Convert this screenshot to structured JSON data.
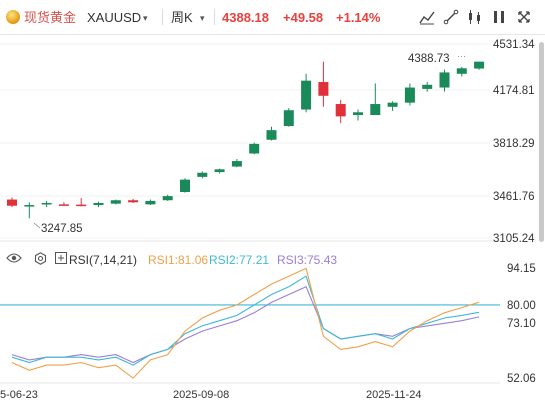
{
  "header": {
    "symbol_cn": "现货黄金",
    "symbol_code": "XAUUSD",
    "period": "周K",
    "price": "4388.18",
    "change": "+49.58",
    "change_pct": "+1.14%",
    "colors": {
      "up": "#e8413e",
      "symbol": "#d9534f"
    }
  },
  "toolbar_icons": [
    "chart-settings-icon",
    "drawing-tools-icon",
    "indicator-icon",
    "columns-icon",
    "fullscreen-icon"
  ],
  "price_axis": {
    "labels": [
      "4531.34",
      "4174.81",
      "3818.29",
      "3461.76",
      "3105.24"
    ],
    "top_color": "#e8413e",
    "bottom_color": "#1a8a5a"
  },
  "max_label": "4388.73",
  "min_label": "3247.85",
  "rsi": {
    "title": "RSI(7,14,21)",
    "rsi1_label": "RSI1:81.06",
    "rsi1_color": "#f0a14a",
    "rsi2_label": "RSI2:77.21",
    "rsi2_color": "#3fb8d6",
    "rsi3_label": "RSI3:75.43",
    "rsi3_color": "#9b7fd4",
    "axis_labels": [
      "94.15",
      "80.00",
      "73.10",
      "52.06"
    ],
    "ref_value": "80.00",
    "ref_color": "#3fb8d6"
  },
  "date_labels": [
    "5-06-23",
    "2025-09-08",
    "2025-11-24"
  ],
  "chart_data": {
    "type": "candlestick",
    "period": "weekly",
    "y_range": [
      3105.24,
      4531.34
    ],
    "candles": [
      {
        "o": 3385,
        "h": 3400,
        "l": 3330,
        "c": 3340
      },
      {
        "o": 3335,
        "h": 3365,
        "l": 3247.85,
        "c": 3345
      },
      {
        "o": 3355,
        "h": 3375,
        "l": 3330,
        "c": 3360
      },
      {
        "o": 3350,
        "h": 3365,
        "l": 3340,
        "c": 3345
      },
      {
        "o": 3348,
        "h": 3395,
        "l": 3335,
        "c": 3345
      },
      {
        "o": 3345,
        "h": 3370,
        "l": 3330,
        "c": 3360
      },
      {
        "o": 3355,
        "h": 3385,
        "l": 3350,
        "c": 3380
      },
      {
        "o": 3380,
        "h": 3390,
        "l": 3360,
        "c": 3365
      },
      {
        "o": 3350,
        "h": 3385,
        "l": 3345,
        "c": 3375
      },
      {
        "o": 3380,
        "h": 3420,
        "l": 3375,
        "c": 3410
      },
      {
        "o": 3440,
        "h": 3540,
        "l": 3435,
        "c": 3530
      },
      {
        "o": 3550,
        "h": 3590,
        "l": 3540,
        "c": 3580
      },
      {
        "o": 3585,
        "h": 3610,
        "l": 3575,
        "c": 3605
      },
      {
        "o": 3625,
        "h": 3680,
        "l": 3620,
        "c": 3665
      },
      {
        "o": 3720,
        "h": 3800,
        "l": 3715,
        "c": 3790
      },
      {
        "o": 3820,
        "h": 3915,
        "l": 3815,
        "c": 3890
      },
      {
        "o": 3920,
        "h": 4050,
        "l": 3915,
        "c": 4035
      },
      {
        "o": 4040,
        "h": 4300,
        "l": 4020,
        "c": 4250
      },
      {
        "o": 4240,
        "h": 4388.73,
        "l": 4060,
        "c": 4140
      },
      {
        "o": 4080,
        "h": 4110,
        "l": 3940,
        "c": 3990
      },
      {
        "o": 4000,
        "h": 4040,
        "l": 3960,
        "c": 4020
      },
      {
        "o": 4000,
        "h": 4230,
        "l": 4000,
        "c": 4080
      },
      {
        "o": 4060,
        "h": 4100,
        "l": 4030,
        "c": 4090
      },
      {
        "o": 4090,
        "h": 4230,
        "l": 4070,
        "c": 4200
      },
      {
        "o": 4190,
        "h": 4240,
        "l": 4170,
        "c": 4220
      },
      {
        "o": 4200,
        "h": 4330,
        "l": 4170,
        "c": 4310
      },
      {
        "o": 4300,
        "h": 4350,
        "l": 4280,
        "c": 4340
      },
      {
        "o": 4338,
        "h": 4389,
        "l": 4330,
        "c": 4388.18
      }
    ],
    "rsi_range": [
      52.06,
      94.15
    ],
    "rsi1": [
      58,
      55,
      57,
      57,
      58,
      56,
      57,
      52,
      59,
      61,
      70,
      75,
      78,
      80,
      84,
      88,
      91,
      94,
      68,
      63,
      64,
      66,
      64,
      70,
      74,
      77,
      79,
      81.06
    ],
    "rsi2": [
      60,
      58,
      60,
      60,
      60,
      59,
      60,
      57,
      61,
      63,
      69,
      72,
      74,
      76,
      80,
      84,
      87,
      91,
      71,
      67,
      68,
      69,
      67,
      71,
      73,
      75,
      76,
      77.21
    ],
    "rsi3": [
      61,
      59,
      60,
      60,
      61,
      60,
      61,
      58,
      61,
      63,
      67,
      70,
      72,
      74,
      77,
      81,
      84,
      87,
      71,
      67,
      68,
      69,
      68,
      71,
      72,
      73,
      74,
      75.43
    ]
  }
}
